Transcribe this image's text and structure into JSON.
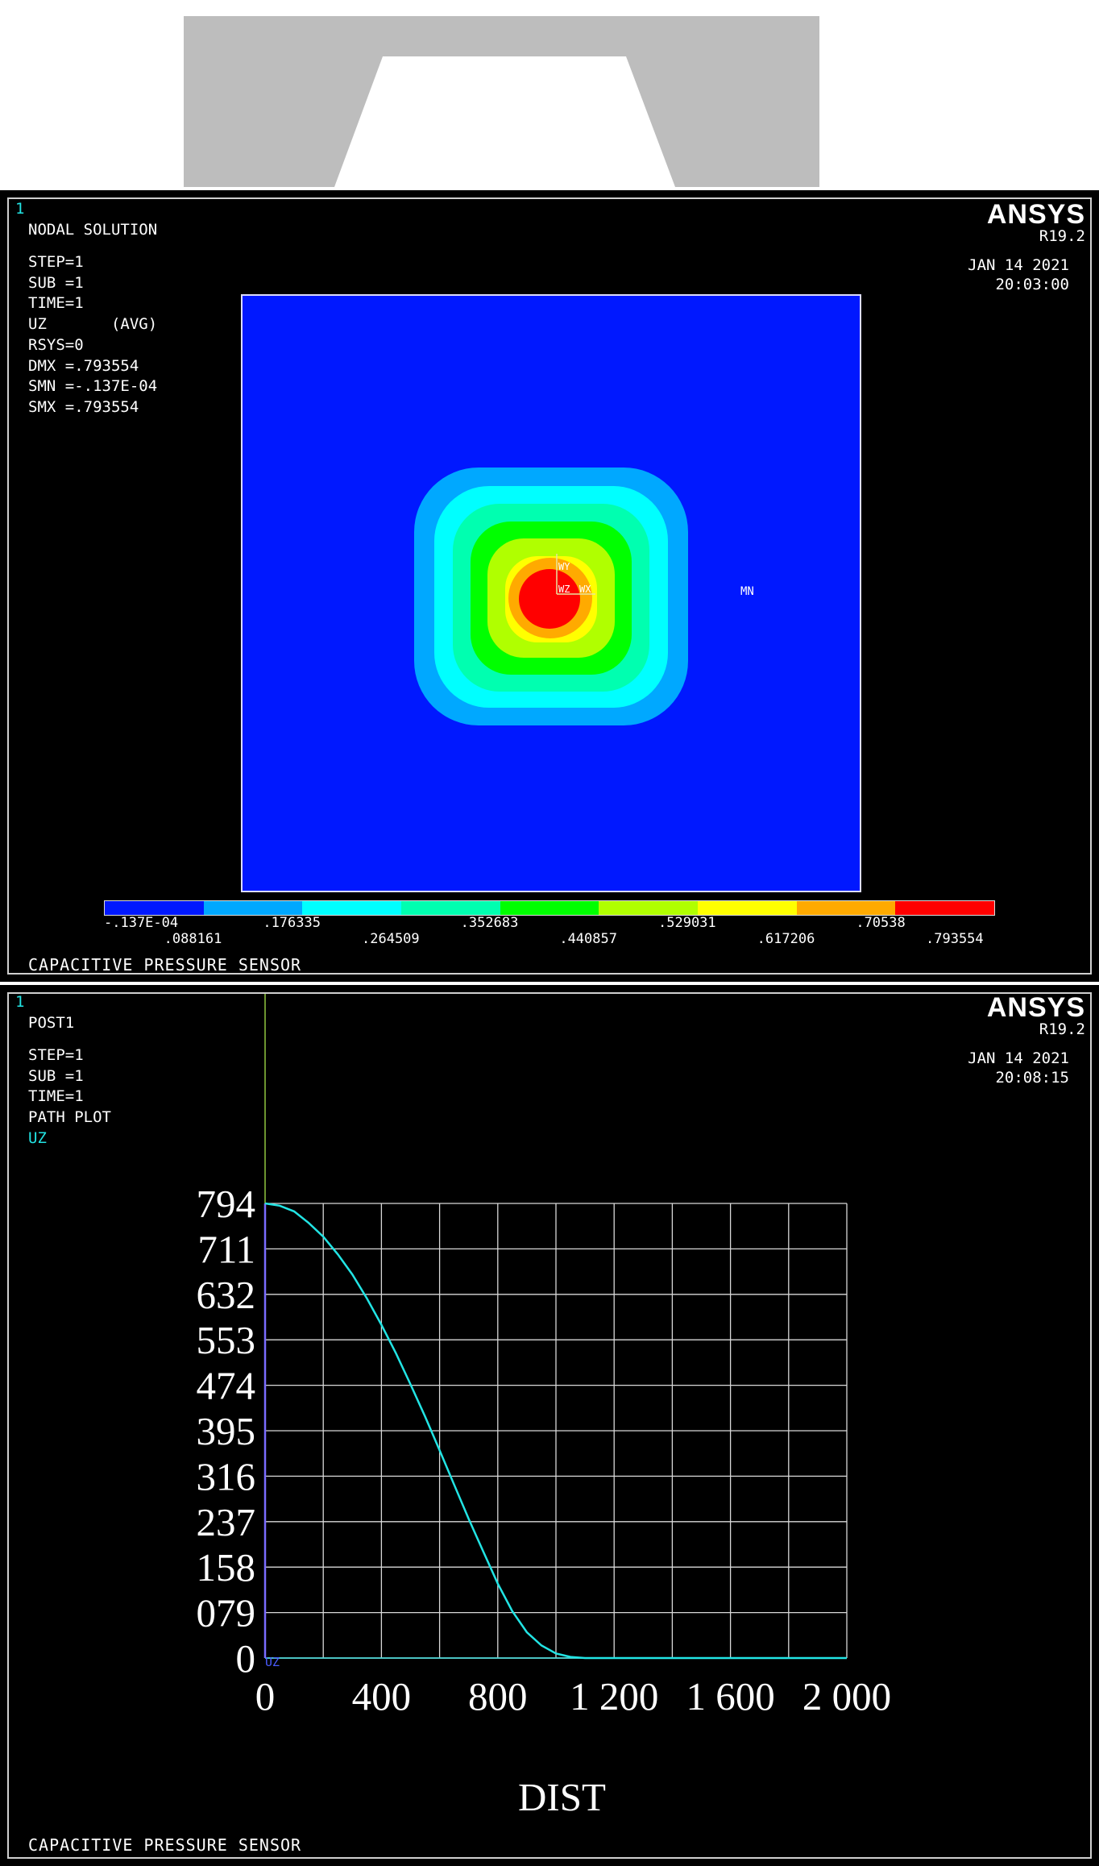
{
  "panel1": {
    "window_number": "1",
    "title": "NODAL SOLUTION",
    "info_lines": [
      "STEP=1",
      "SUB =1",
      "TIME=1",
      "UZ       (AVG)",
      "RSYS=0",
      "DMX =.793554",
      "SMN =-.137E-04",
      "SMX =.793554"
    ],
    "brand": "ANSYS",
    "version": "R19.2",
    "date": "JAN 14 2021",
    "time": "20:03:00",
    "min_label": "MN",
    "axis_labels": {
      "y": "WY",
      "z": "WZ",
      "x": "WX"
    },
    "legend": {
      "colors": [
        "#0018ff",
        "#00a8ff",
        "#00ffff",
        "#00ffb0",
        "#00ff00",
        "#b0ff00",
        "#ffff00",
        "#ffaa00",
        "#ff0000"
      ],
      "labels": [
        "-.137E-04",
        ".088161",
        ".176335",
        ".264509",
        ".352683",
        ".440857",
        ".529031",
        ".617206",
        ".70538",
        ".793554"
      ]
    },
    "footer": "CAPACITIVE PRESSURE SENSOR"
  },
  "panel2": {
    "window_number": "1",
    "title": "POST1",
    "info_lines": [
      "STEP=1",
      "SUB =1",
      "TIME=1",
      "PATH PLOT"
    ],
    "series_label": "UZ",
    "brand": "ANSYS",
    "version": "R19.2",
    "date": "JAN 14 2021",
    "time": "20:08:15",
    "corner_label": "UZ",
    "xlabel": "DIST",
    "footer": "CAPACITIVE PRESSURE SENSOR"
  },
  "chart_data": {
    "type": "line",
    "xlabel": "DIST",
    "ylabel": "UZ",
    "xlim": [
      0,
      2000
    ],
    "ylim": [
      0,
      794
    ],
    "x_tick_labels": [
      "0",
      "400",
      "800",
      "1 200",
      "1 600",
      "2 000"
    ],
    "y_tick_labels": [
      "794",
      "711",
      "632",
      "553",
      "474",
      "395",
      "316",
      "237",
      "158",
      "079",
      "0"
    ],
    "grid": true,
    "series": [
      {
        "color": "#22e4e4",
        "x": [
          0,
          50,
          100,
          150,
          200,
          250,
          300,
          350,
          400,
          450,
          500,
          550,
          600,
          650,
          700,
          750,
          800,
          850,
          900,
          950,
          1000,
          1050,
          1100,
          1200,
          1400,
          1600,
          1800,
          2000
        ],
        "y": [
          794,
          790,
          780,
          760,
          736,
          705,
          670,
          628,
          582,
          532,
          478,
          422,
          363,
          303,
          243,
          186,
          130,
          82,
          45,
          22,
          8,
          2,
          0,
          0,
          0,
          0,
          0,
          0
        ]
      }
    ]
  }
}
